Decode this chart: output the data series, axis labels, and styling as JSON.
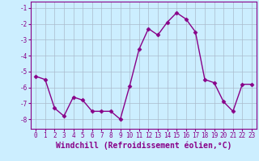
{
  "x": [
    0,
    1,
    2,
    3,
    4,
    5,
    6,
    7,
    8,
    9,
    10,
    11,
    12,
    13,
    14,
    15,
    16,
    17,
    18,
    19,
    20,
    21,
    22,
    23
  ],
  "y": [
    -5.3,
    -5.5,
    -7.3,
    -7.8,
    -6.6,
    -6.8,
    -7.5,
    -7.5,
    -7.5,
    -8.0,
    -5.9,
    -3.6,
    -2.3,
    -2.7,
    -1.9,
    -1.3,
    -1.7,
    -2.5,
    -5.5,
    -5.7,
    -6.9,
    -7.5,
    -5.8,
    -5.8
  ],
  "line_color": "#880088",
  "marker": "D",
  "markersize": 2.5,
  "linewidth": 1.0,
  "bg_color": "#cceeff",
  "grid_color": "#aabbcc",
  "xlabel": "Windchill (Refroidissement éolien,°C)",
  "xlabel_fontsize": 7,
  "ytick_labels": [
    "-8",
    "-7",
    "-6",
    "-5",
    "-4",
    "-3",
    "-2",
    "-1"
  ],
  "ytick_vals": [
    -8,
    -7,
    -6,
    -5,
    -4,
    -3,
    -2,
    -1
  ],
  "xtick_vals": [
    0,
    1,
    2,
    3,
    4,
    5,
    6,
    7,
    8,
    9,
    10,
    11,
    12,
    13,
    14,
    15,
    16,
    17,
    18,
    19,
    20,
    21,
    22,
    23
  ],
  "ylim": [
    -8.6,
    -0.6
  ],
  "xlim": [
    -0.5,
    23.5
  ],
  "tick_fontsize": 5.5,
  "spine_color": "#880088"
}
